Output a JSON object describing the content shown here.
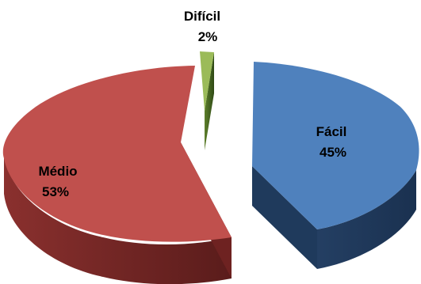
{
  "chart_data": {
    "type": "pie",
    "style": "3d-exploded",
    "title": "",
    "legend": "none",
    "slices": [
      {
        "name": "Fácil",
        "value": 45,
        "label": "45%",
        "color": "#4F81BD",
        "side_color": "#1F3A5C"
      },
      {
        "name": "Difícil",
        "value": 2,
        "label": "2%",
        "color": "#9BBB59",
        "side_color": "#3F5E1E"
      },
      {
        "name": "Médio",
        "value": 53,
        "label": "53%",
        "color": "#C0504D",
        "side_color": "#6E2221"
      }
    ]
  }
}
